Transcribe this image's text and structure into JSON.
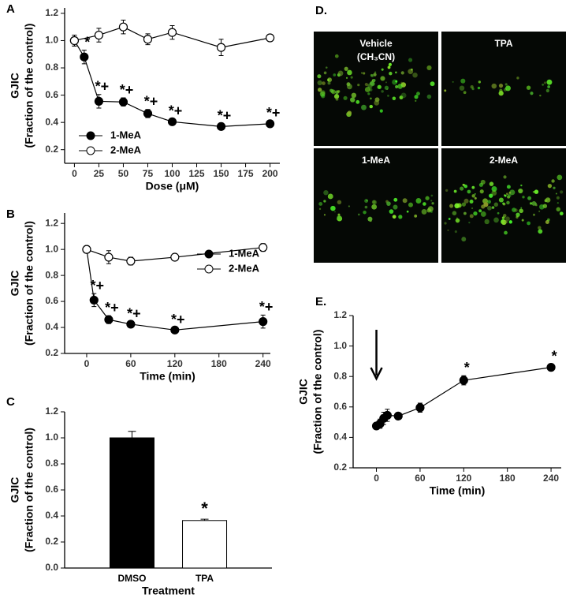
{
  "chart_data": [
    {
      "type": "line",
      "panel": "A",
      "y_label": [
        "GJIC",
        "(Fraction of the control)"
      ],
      "x_label": "Dose (μM)",
      "xlim": [
        -10,
        210
      ],
      "xticks": [
        0,
        25,
        50,
        75,
        100,
        125,
        150,
        175,
        200
      ],
      "ylim": [
        0.1,
        1.24
      ],
      "yticks": [
        0.2,
        0.4,
        0.6,
        0.8,
        {
          "value": 1.0,
          "label": "1.0"
        },
        1.2
      ],
      "legend": "lower left",
      "series": [
        {
          "name": "1-MeA",
          "color": "#000000",
          "fill": "#000000",
          "x": [
            0,
            10,
            25,
            50,
            75,
            100,
            150,
            200
          ],
          "values": [
            1.0,
            0.88,
            0.555,
            0.55,
            0.465,
            0.405,
            0.37,
            0.39
          ],
          "errors": [
            0.04,
            0.05,
            0.05,
            0.03,
            0.03,
            0.02,
            0.02,
            0.02
          ],
          "labels": [
            null,
            "*",
            "*+",
            "*+",
            "*+",
            "*+",
            "*+",
            "*+"
          ]
        },
        {
          "name": "2-MeA",
          "color": "#000000",
          "fill": "#ffffff",
          "x": [
            0,
            25,
            50,
            75,
            100,
            150,
            200
          ],
          "values": [
            1.0,
            1.04,
            1.1,
            1.01,
            1.06,
            0.95,
            1.02
          ],
          "errors": [
            0.04,
            0.05,
            0.05,
            0.04,
            0.05,
            0.06,
            0.02
          ],
          "labels": [
            null,
            null,
            null,
            null,
            null,
            null,
            null
          ]
        }
      ]
    },
    {
      "type": "line",
      "panel": "B",
      "y_label": [
        "GJIC",
        "(Fraction of the control)"
      ],
      "x_label": "Time (min)",
      "xlim": [
        -30,
        250
      ],
      "xticks": [
        0,
        60,
        120,
        180,
        240
      ],
      "ylim": [
        0.2,
        1.28
      ],
      "yticks": [
        0.2,
        0.4,
        0.6,
        0.8,
        {
          "value": 1.0,
          "label": "1.0"
        },
        1.2
      ],
      "legend": "upper right",
      "series": [
        {
          "name": "1-MeA",
          "color": "#000000",
          "fill": "#000000",
          "x": [
            0,
            10,
            30,
            60,
            120,
            240
          ],
          "values": [
            1.0,
            0.61,
            0.46,
            0.425,
            0.38,
            0.445
          ],
          "errors": [
            0.02,
            0.05,
            0.03,
            0.02,
            0.02,
            0.05
          ],
          "labels": [
            null,
            "*+",
            "*+",
            "*+",
            "*+",
            "*+"
          ]
        },
        {
          "name": "2-MeA",
          "color": "#000000",
          "fill": "#ffffff",
          "x": [
            0,
            30,
            60,
            120,
            240
          ],
          "values": [
            1.0,
            0.94,
            0.91,
            0.94,
            1.015
          ],
          "errors": [
            0.02,
            0.05,
            0.03,
            0.02,
            0.03
          ],
          "labels": [
            null,
            null,
            null,
            null,
            null
          ]
        }
      ]
    },
    {
      "type": "bar",
      "panel": "C",
      "y_label": [
        "GJIC",
        "(Fraction of the control)"
      ],
      "x_label": "Treatment",
      "ylim": [
        0,
        1.2
      ],
      "yticks": [
        {
          "value": 0,
          "label": "0.0"
        },
        0.2,
        0.4,
        0.6,
        0.8,
        {
          "value": 1.0,
          "label": "1.0"
        },
        1.2
      ],
      "categories": [
        "DMSO",
        "TPA"
      ],
      "values": [
        1.0,
        0.365
      ],
      "errors": [
        0.05,
        0.01
      ],
      "colors": [
        "#000000",
        "#ffffff"
      ],
      "labels": [
        null,
        "*"
      ]
    },
    {
      "type": "line",
      "panel": "E.",
      "y_label": [
        "GJIC",
        "(Fraction of the control)"
      ],
      "x_label": "Time (min)",
      "xlim": [
        -32,
        254
      ],
      "xticks": [
        0,
        60,
        120,
        180,
        240
      ],
      "ylim": [
        0.2,
        1.2
      ],
      "yticks": [
        0.2,
        0.4,
        0.6,
        0.8,
        {
          "value": 1.0,
          "label": "1.0"
        },
        1.2
      ],
      "series": [
        {
          "color": "#000000",
          "fill": "#000000",
          "x": [
            0,
            5,
            10,
            15,
            30,
            60,
            120,
            240
          ],
          "values": [
            0.475,
            0.49,
            0.525,
            0.545,
            0.54,
            0.595,
            0.775,
            0.86
          ],
          "errors": [
            0.02,
            0.03,
            0.04,
            0.04,
            0.02,
            0.03,
            0.03,
            0.02
          ],
          "labels": [
            null,
            null,
            null,
            null,
            null,
            null,
            "*",
            "*"
          ]
        }
      ]
    }
  ],
  "panel_d": {
    "label": "D.",
    "images": [
      {
        "label": [
          "Vehicle",
          "(CH₃CN)"
        ]
      },
      {
        "label": [
          "TPA"
        ]
      },
      {
        "label": [
          "1-MeA"
        ]
      },
      {
        "label": [
          "2-MeA"
        ]
      }
    ]
  }
}
